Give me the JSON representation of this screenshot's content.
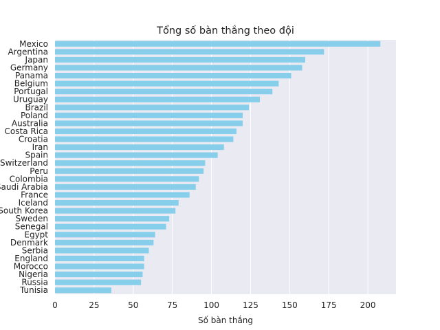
{
  "chart_data": {
    "type": "bar",
    "orientation": "horizontal",
    "title": "Tổng số bàn thắng theo đội",
    "xlabel": "Số bàn thắng",
    "ylabel": "",
    "xlim": [
      0,
      218
    ],
    "xticks": [
      "0",
      "25",
      "50",
      "75",
      "100",
      "125",
      "150",
      "175",
      "200"
    ],
    "grid": true,
    "bar_color": "#87ceeb",
    "plot_background": "#eaeaf2",
    "categories": [
      "Mexico",
      "Argentina",
      "Japan",
      "Germany",
      "Panama",
      "Belgium",
      "Portugal",
      "Uruguay",
      "Brazil",
      "Poland",
      "Australia",
      "Costa Rica",
      "Croatia",
      "Iran",
      "Spain",
      "Switzerland",
      "Peru",
      "Colombia",
      "Saudi Arabia",
      "France",
      "Iceland",
      "South Korea",
      "Sweden",
      "Senegal",
      "Egypt",
      "Denmark",
      "Serbia",
      "England",
      "Morocco",
      "Nigeria",
      "Russia",
      "Tunisia"
    ],
    "values": [
      208,
      172,
      160,
      158,
      151,
      143,
      139,
      131,
      124,
      120,
      120,
      116,
      114,
      108,
      104,
      96,
      95,
      92,
      90,
      86,
      79,
      77,
      73,
      71,
      64,
      63,
      60,
      57,
      57,
      56,
      55,
      36
    ]
  }
}
